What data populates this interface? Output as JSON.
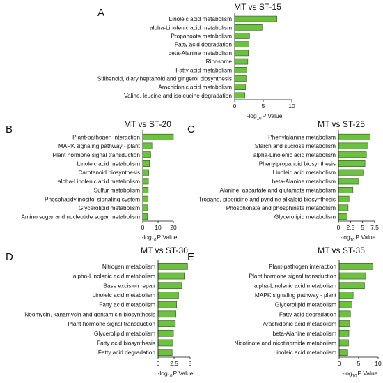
{
  "figure": {
    "panels": [
      {
        "label": "A",
        "chart_data": {
          "type": "bar",
          "orientation": "horizontal",
          "title": "MT vs ST-15",
          "xlabel": {
            "pre": "-log",
            "sub": "10",
            "post": "P Value"
          },
          "xlim": [
            0,
            10
          ],
          "xticks": [
            "0",
            "5",
            "10"
          ],
          "categories": [
            "Linoleic acid metabolism",
            "alpha-Linolenic acid metabolism",
            "Propanoate metabolism",
            "Fatty acid degradation",
            "beta-Alanine metabolism",
            "Ribosome",
            "Fatty acid metabolism",
            "Stilbenoid, diarylheptanoid and gingerol biosynthesis",
            "Arachidonic acid metabolism",
            "Valine, leucine and isoleucine degradation"
          ],
          "values": [
            7.4,
            4.8,
            2.6,
            2.5,
            2.4,
            2.3,
            2.1,
            2.0,
            1.9,
            1.8
          ]
        }
      },
      {
        "label": "B",
        "chart_data": {
          "type": "bar",
          "orientation": "horizontal",
          "title": "MT vs ST-20",
          "xlabel": {
            "pre": "-log",
            "sub": "10",
            "post": "P Value"
          },
          "xlim": [
            0,
            20
          ],
          "xticks": [
            "0",
            "10",
            "20"
          ],
          "categories": [
            "Plant-pathogen interaction",
            "MAPK signaling pathway - plant",
            "Plant hormone signal transduction",
            "Linoleic acid metabolism",
            "Carotenoid biosynthesis",
            "alpha-Linolenic acid metabolism",
            "Sulfur metabolism",
            "Phosphatidylinositol signaling system",
            "Glycerolipid metabolism",
            "Amino sugar and nucleotide sugar metabolism"
          ],
          "values": [
            20.0,
            6.0,
            5.2,
            4.4,
            4.0,
            3.7,
            3.6,
            3.4,
            3.2,
            3.0
          ]
        }
      },
      {
        "label": "C",
        "chart_data": {
          "type": "bar",
          "orientation": "horizontal",
          "title": "MT vs ST-25",
          "xlabel": {
            "pre": "-log",
            "sub": "10",
            "post": "P Value"
          },
          "xlim": [
            0,
            7.5
          ],
          "xticks": [
            "0",
            "2.5",
            "5",
            "7.5"
          ],
          "categories": [
            "Phenylalanine metabolism",
            "Starch and sucrose metabolism",
            "alpha-Linolenic acid metabolism",
            "Phenylpropanoid biosynthesis",
            "Linoleic acid metabolism",
            "beta-Alanine metabolism",
            "Alanine, aspartate and glutamate metabolism",
            "Tropane, piperidine and pyridine alkaloid biosynthesis",
            "Phosphonate and phosphinate metabolism",
            "Glycerolipid metabolism"
          ],
          "values": [
            6.6,
            6.1,
            5.8,
            5.5,
            5.1,
            4.2,
            3.0,
            2.2,
            2.0,
            1.8
          ]
        }
      },
      {
        "label": "D",
        "chart_data": {
          "type": "bar",
          "orientation": "horizontal",
          "title": "MT vs ST-30",
          "xlabel": {
            "pre": "-log",
            "sub": "10",
            "post": "P Value"
          },
          "xlim": [
            0,
            5
          ],
          "xticks": [
            "0",
            "2.5",
            "5"
          ],
          "categories": [
            "Nitrogen metabolism",
            "alpha-Linolenic acid metabolism",
            "Base excision repair",
            "Linoleic acid metabolism",
            "Fatty acid metabolism",
            "Neomycin, kanamycin and gentamicin biosynthesis",
            "Plant hormone signal transduction",
            "Glycerolipid metabolism",
            "Fatty acid biosynthesis",
            "Fatty acid degradation"
          ],
          "values": [
            4.6,
            4.1,
            3.7,
            3.2,
            2.9,
            2.8,
            2.7,
            2.4,
            2.3,
            2.2
          ]
        }
      },
      {
        "label": "E",
        "chart_data": {
          "type": "bar",
          "orientation": "horizontal",
          "title": "MT vs ST-35",
          "xlabel": {
            "pre": "-log",
            "sub": "10",
            "post": "P Value"
          },
          "xlim": [
            0,
            10
          ],
          "xticks": [
            "0",
            "5",
            "10"
          ],
          "categories": [
            "Plant-pathogen interaction",
            "Plant hormone signal transduction",
            "alpha-Linolenic acid metabolism",
            "MAPK signaling pathway - plant",
            "Glycerolipid metabolism",
            "Fatty acid degradation",
            "Arachidonic acid metabolism",
            "beta-Alanine metabolism",
            "Nicotinate and nicotinamide metabolism",
            "Linoleic acid metabolism"
          ],
          "values": [
            8.7,
            6.8,
            6.5,
            3.6,
            3.3,
            2.9,
            2.7,
            2.5,
            2.4,
            2.2
          ]
        }
      }
    ],
    "colors": {
      "bar_fill": "#6cc23f",
      "bar_stroke": "#2f4f1f",
      "axis": "#111111"
    }
  }
}
